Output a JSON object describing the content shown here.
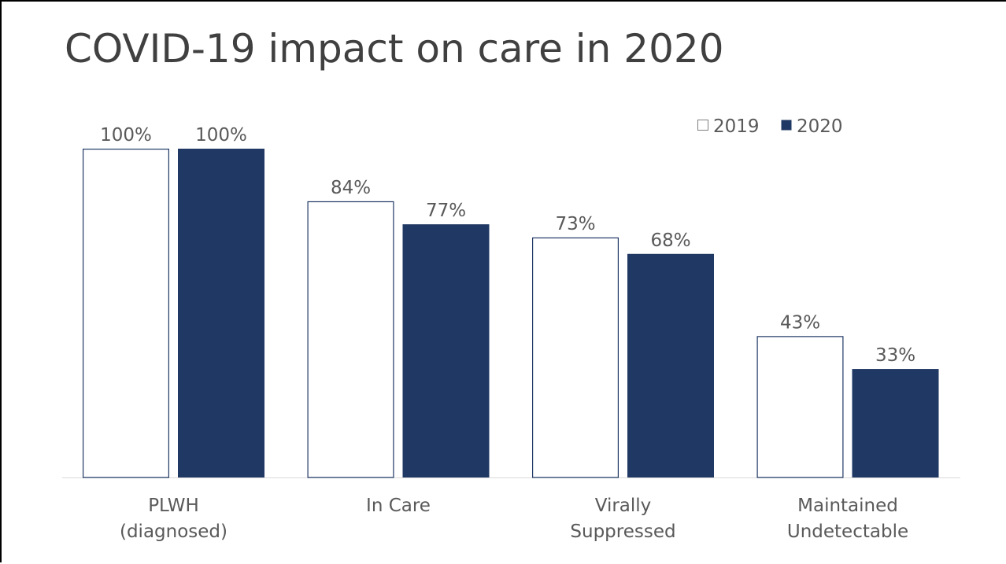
{
  "slide": {
    "title": "COVID-19 impact on care in 2020"
  },
  "chart_data": {
    "type": "bar",
    "title": "COVID-19 impact on care in 2020",
    "xlabel": "",
    "ylabel": "",
    "ylim": [
      0,
      100
    ],
    "grid": false,
    "legend_position": "top-right",
    "categories": [
      [
        "PLWH",
        "(diagnosed)"
      ],
      [
        "In Care"
      ],
      [
        "Virally",
        "Suppressed"
      ],
      [
        "Maintained",
        "Undetectable"
      ]
    ],
    "series": [
      {
        "name": "2019",
        "values": [
          100,
          84,
          73,
          43
        ],
        "labels": [
          "100%",
          "84%",
          "73%",
          "43%"
        ],
        "fill": "#FFFFFF",
        "stroke": "#1F3763"
      },
      {
        "name": "2020",
        "values": [
          100,
          77,
          68,
          33
        ],
        "labels": [
          "100%",
          "77%",
          "68%",
          "33%"
        ],
        "fill": "#203864",
        "stroke": "#203864"
      }
    ]
  }
}
